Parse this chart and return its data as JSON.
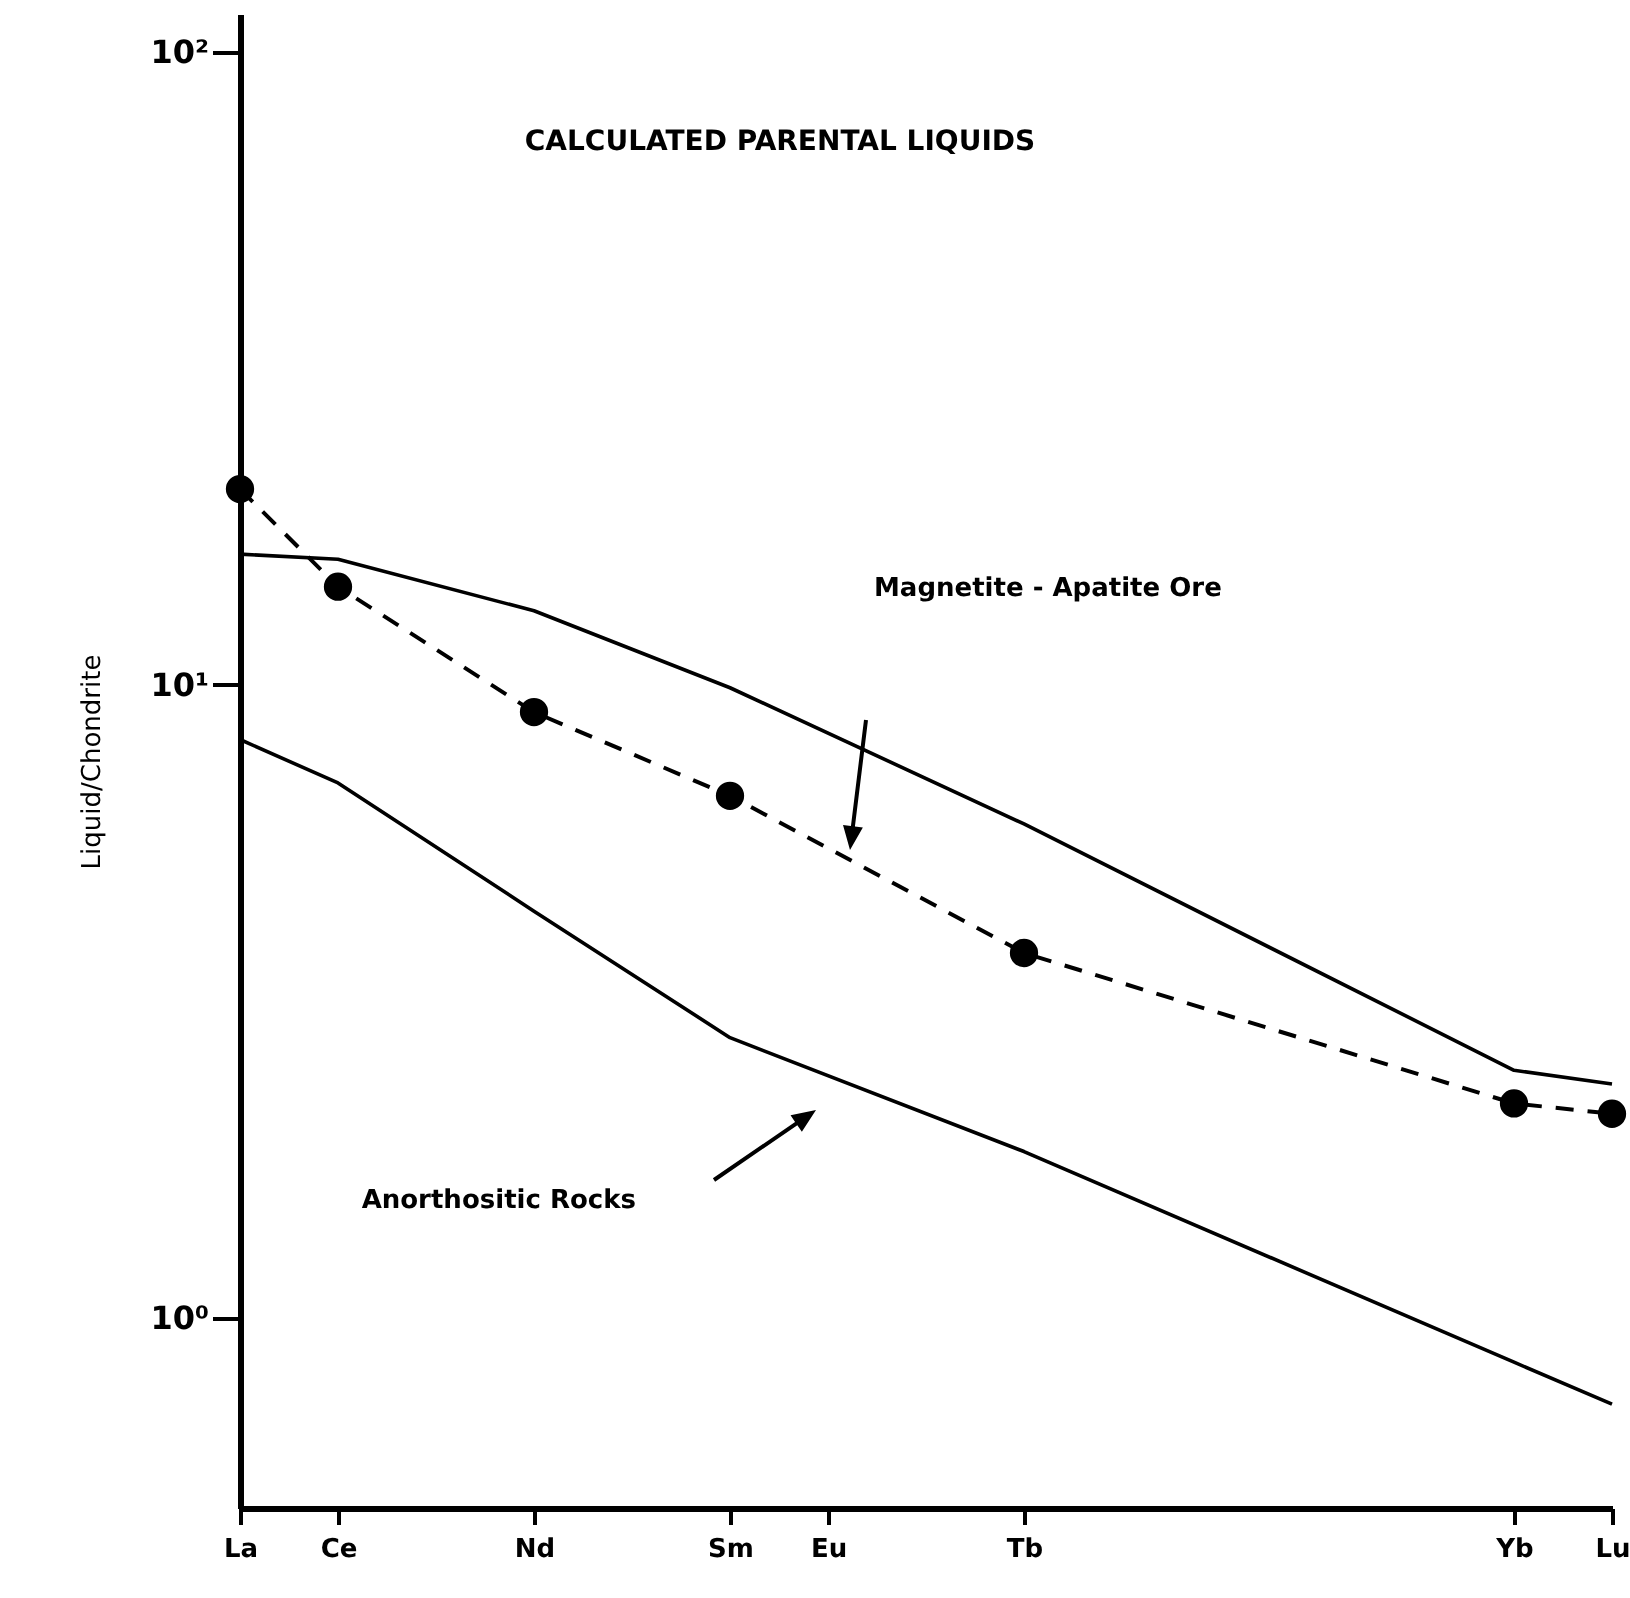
{
  "chart_data": {
    "type": "line",
    "title": "CALCULATED PARENTAL LIQUIDS",
    "ylabel": "Liquid/Chondrite",
    "log": "y",
    "ylim": [
      0.5,
      115
    ],
    "categories": [
      "La",
      "Ce",
      null,
      "Nd",
      null,
      "Sm",
      "Eu",
      null,
      "Tb",
      null,
      null,
      null,
      null,
      "Yb",
      "Lu"
    ],
    "yticks": [
      {
        "value": 1,
        "label": "10⁰"
      },
      {
        "value": 10,
        "label": "10¹"
      },
      {
        "value": 100,
        "label": "10²"
      }
    ],
    "grid": false,
    "series": [
      {
        "color": "#000000",
        "marker": "none",
        "line_style": "solid",
        "values": [
          16.1,
          15.8,
          null,
          13.1,
          null,
          9.9,
          null,
          null,
          6.03,
          null,
          null,
          null,
          null,
          2.46,
          2.34
        ]
      },
      {
        "color": "#000000",
        "marker": "none",
        "line_style": "solid",
        "values": [
          8.2,
          7.0,
          null,
          4.39,
          null,
          2.77,
          null,
          null,
          1.83,
          null,
          null,
          null,
          null,
          0.85,
          0.73
        ]
      },
      {
        "color": "#000000",
        "marker": "circle",
        "line_style": "dashed",
        "values": [
          20.4,
          14.3,
          null,
          9.06,
          null,
          6.68,
          null,
          null,
          3.77,
          null,
          null,
          null,
          null,
          2.18,
          2.1
        ]
      }
    ],
    "annotations": [
      "Magnetite - Apatite Ore",
      "Anorthositic Rocks"
    ]
  }
}
